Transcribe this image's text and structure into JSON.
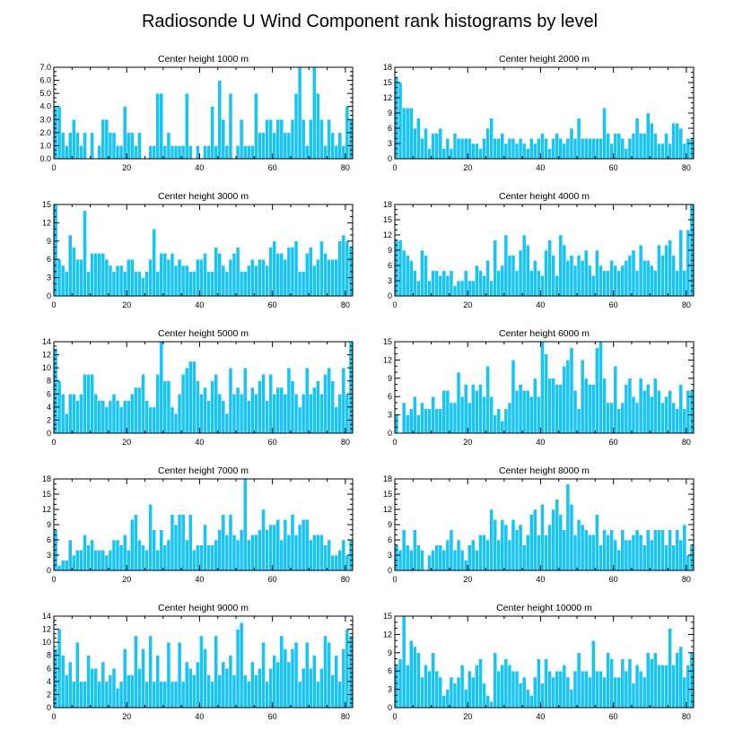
{
  "title": "Radiosonde U Wind Component rank histograms by level",
  "colors": {
    "bar": "#19c4f5",
    "axis": "#000000"
  },
  "chart_data": [
    {
      "type": "bar",
      "title": "Center height 1000 m",
      "xlim": [
        0,
        82
      ],
      "xticks": [
        "0",
        "20",
        "40",
        "60",
        "80"
      ],
      "ylim": [
        0,
        7
      ],
      "yticks": [
        "0.0",
        "1.0",
        "2.0",
        "3.0",
        "4.0",
        "5.0",
        "6.0",
        "7.0"
      ],
      "values": [
        4,
        4,
        2,
        1,
        2,
        3,
        2,
        1,
        2,
        0,
        2,
        0,
        1,
        3,
        3,
        2,
        2,
        1,
        1,
        4,
        2,
        2,
        1,
        2,
        0,
        0,
        1,
        1,
        5,
        5,
        1,
        2,
        1,
        1,
        1,
        1,
        5,
        1,
        0,
        1,
        0,
        1,
        1,
        4,
        1,
        6,
        3,
        1,
        5,
        0,
        1,
        3,
        1,
        1,
        1,
        5,
        2,
        2,
        3,
        3,
        2,
        3,
        3,
        2,
        2,
        3,
        5,
        7,
        3,
        1,
        3,
        7,
        5,
        3,
        1,
        3,
        2,
        1,
        2,
        1,
        4,
        3
      ]
    },
    {
      "type": "bar",
      "title": "Center height 2000 m",
      "xlim": [
        0,
        82
      ],
      "xticks": [
        "0",
        "20",
        "40",
        "60",
        "80"
      ],
      "ylim": [
        0,
        18
      ],
      "yticks": [
        "0",
        "3",
        "6",
        "9",
        "12",
        "15",
        "18"
      ],
      "values": [
        16,
        15,
        10,
        10,
        10,
        6,
        8,
        4,
        6,
        2,
        5,
        5,
        6,
        2,
        4,
        2,
        5,
        4,
        4,
        4,
        4,
        3,
        3,
        2,
        4,
        6,
        8,
        4,
        4,
        5,
        3,
        4,
        4,
        3,
        4,
        3,
        2,
        4,
        3,
        4,
        5,
        4,
        2,
        4,
        5,
        4,
        3,
        4,
        6,
        4,
        8,
        4,
        4,
        4,
        4,
        4,
        4,
        10,
        5,
        3,
        5,
        5,
        4,
        2,
        4,
        5,
        8,
        5,
        5,
        9,
        7,
        5,
        3,
        3,
        5,
        3,
        7,
        7,
        6,
        3,
        4,
        4
      ]
    },
    {
      "type": "bar",
      "title": "Center height 3000 m",
      "xlim": [
        0,
        82
      ],
      "xticks": [
        "0",
        "20",
        "40",
        "60",
        "80"
      ],
      "ylim": [
        0,
        15
      ],
      "yticks": [
        "0",
        "3",
        "6",
        "9",
        "12",
        "15"
      ],
      "values": [
        15,
        6,
        5,
        4,
        10,
        8,
        6,
        6,
        14,
        4,
        7,
        7,
        7,
        7,
        6,
        5,
        4,
        5,
        5,
        4,
        6,
        6,
        4,
        4,
        3,
        4,
        6,
        11,
        4,
        7,
        7,
        6,
        7,
        5,
        6,
        5,
        5,
        4,
        4,
        6,
        6,
        7,
        4,
        4,
        8,
        7,
        5,
        4,
        6,
        7,
        8,
        4,
        4,
        5,
        6,
        5,
        6,
        6,
        5,
        8,
        9,
        7,
        7,
        6,
        8,
        8,
        9,
        4,
        4,
        7,
        8,
        5,
        6,
        9,
        7,
        6,
        6,
        6,
        9,
        10,
        9,
        8
      ]
    },
    {
      "type": "bar",
      "title": "Center height 4000 m",
      "xlim": [
        0,
        82
      ],
      "xticks": [
        "0",
        "20",
        "40",
        "60",
        "80"
      ],
      "ylim": [
        0,
        18
      ],
      "yticks": [
        "0",
        "3",
        "6",
        "9",
        "12",
        "15",
        "18"
      ],
      "values": [
        11,
        11,
        9,
        8,
        7,
        5,
        3,
        9,
        8,
        3,
        5,
        5,
        4,
        5,
        4,
        5,
        2,
        3,
        3,
        5,
        3,
        3,
        6,
        5,
        4,
        7,
        3,
        11,
        5,
        6,
        12,
        8,
        8,
        5,
        9,
        12,
        10,
        5,
        7,
        5,
        4,
        9,
        11,
        8,
        4,
        12,
        10,
        7,
        8,
        6,
        8,
        7,
        9,
        6,
        4,
        9,
        6,
        5,
        5,
        7,
        6,
        5,
        6,
        7,
        8,
        9,
        5,
        10,
        7,
        7,
        6,
        5,
        10,
        8,
        10,
        11,
        8,
        5,
        13,
        5,
        13,
        18
      ]
    },
    {
      "type": "bar",
      "title": "Center height 5000 m",
      "xlim": [
        0,
        82
      ],
      "xticks": [
        "0",
        "20",
        "40",
        "60",
        "80"
      ],
      "ylim": [
        0,
        14
      ],
      "yticks": [
        "0",
        "2",
        "4",
        "6",
        "8",
        "10",
        "12",
        "14"
      ],
      "values": [
        13,
        8,
        6,
        3,
        6,
        6,
        5,
        6,
        9,
        9,
        9,
        6,
        5,
        5,
        4,
        5,
        6,
        5,
        4,
        5,
        5,
        6,
        7,
        7,
        9,
        5,
        4,
        4,
        9,
        14,
        8,
        8,
        4,
        3,
        6,
        9,
        10,
        11,
        11,
        8,
        6,
        7,
        5,
        8,
        9,
        6,
        5,
        3,
        10,
        6,
        7,
        6,
        10,
        5,
        7,
        6,
        8,
        9,
        5,
        9,
        6,
        7,
        7,
        6,
        10,
        8,
        6,
        4,
        6,
        10,
        6,
        7,
        8,
        6,
        9,
        10,
        8,
        4,
        6,
        10,
        6,
        14
      ]
    },
    {
      "type": "bar",
      "title": "Center height 6000 m",
      "xlim": [
        0,
        82
      ],
      "xticks": [
        "0",
        "20",
        "40",
        "60",
        "80"
      ],
      "ylim": [
        0,
        15
      ],
      "yticks": [
        "0",
        "3",
        "6",
        "9",
        "12",
        "15"
      ],
      "values": [
        3,
        0,
        5,
        3,
        4,
        6,
        3,
        5,
        4,
        4,
        6,
        4,
        4,
        7,
        7,
        5,
        5,
        10,
        6,
        8,
        5,
        8,
        7,
        8,
        6,
        11,
        6,
        3,
        4,
        2,
        4,
        5,
        12,
        7,
        8,
        7,
        7,
        6,
        9,
        6,
        15,
        13,
        9,
        9,
        8,
        8,
        11,
        12,
        14,
        7,
        4,
        12,
        9,
        8,
        8,
        14,
        15,
        9,
        5,
        5,
        11,
        4,
        5,
        8,
        9,
        6,
        5,
        9,
        7,
        8,
        6,
        9,
        7,
        5,
        6,
        7,
        5,
        4,
        8,
        4,
        7,
        7
      ]
    },
    {
      "type": "bar",
      "title": "Center height 7000 m",
      "xlim": [
        0,
        82
      ],
      "xticks": [
        "0",
        "20",
        "40",
        "60",
        "80"
      ],
      "ylim": [
        0,
        18
      ],
      "yticks": [
        "0",
        "3",
        "6",
        "9",
        "12",
        "15",
        "18"
      ],
      "values": [
        8,
        1,
        2,
        2,
        6,
        3,
        4,
        4,
        7,
        5,
        6,
        4,
        4,
        4,
        3,
        4,
        6,
        6,
        5,
        7,
        4,
        10,
        11,
        6,
        5,
        4,
        13,
        8,
        4,
        8,
        5,
        6,
        11,
        9,
        11,
        11,
        6,
        11,
        4,
        5,
        5,
        9,
        5,
        5,
        6,
        8,
        11,
        7,
        11,
        7,
        6,
        8,
        18,
        6,
        7,
        7,
        8,
        12,
        8,
        9,
        9,
        10,
        6,
        10,
        7,
        11,
        7,
        9,
        10,
        10,
        6,
        7,
        7,
        7,
        5,
        6,
        3,
        3,
        4,
        6,
        3,
        6
      ]
    },
    {
      "type": "bar",
      "title": "Center height 8000 m",
      "xlim": [
        0,
        82
      ],
      "xticks": [
        "0",
        "20",
        "40",
        "60",
        "80"
      ],
      "ylim": [
        0,
        18
      ],
      "yticks": [
        "0",
        "3",
        "6",
        "9",
        "12",
        "15",
        "18"
      ],
      "values": [
        5,
        4,
        8,
        5,
        4,
        8,
        5,
        4,
        0,
        3,
        4,
        5,
        5,
        4,
        6,
        8,
        4,
        6,
        4,
        2,
        5,
        6,
        4,
        7,
        7,
        6,
        12,
        10,
        6,
        10,
        9,
        6,
        10,
        8,
        9,
        5,
        7,
        11,
        12,
        7,
        13,
        7,
        9,
        12,
        14,
        11,
        8,
        17,
        13,
        7,
        10,
        9,
        8,
        7,
        7,
        11,
        5,
        8,
        7,
        8,
        6,
        4,
        8,
        6,
        6,
        7,
        8,
        7,
        5,
        8,
        6,
        8,
        8,
        8,
        5,
        8,
        5,
        8,
        6,
        9,
        3,
        5
      ]
    },
    {
      "type": "bar",
      "title": "Center height 9000 m",
      "xlim": [
        0,
        82
      ],
      "xticks": [
        "0",
        "20",
        "40",
        "60",
        "80"
      ],
      "ylim": [
        0,
        14
      ],
      "yticks": [
        "0",
        "2",
        "4",
        "6",
        "8",
        "10",
        "12",
        "14"
      ],
      "values": [
        9,
        12,
        8,
        5,
        7,
        4,
        10,
        4,
        4,
        8,
        6,
        6,
        4,
        7,
        4,
        5,
        6,
        3,
        4,
        9,
        5,
        5,
        11,
        6,
        9,
        4,
        11,
        4,
        8,
        4,
        4,
        10,
        4,
        4,
        10,
        4,
        7,
        6,
        5,
        7,
        11,
        9,
        5,
        4,
        11,
        5,
        7,
        6,
        8,
        5,
        12,
        13,
        5,
        4,
        7,
        5,
        6,
        10,
        4,
        6,
        8,
        7,
        11,
        9,
        7,
        9,
        10,
        4,
        6,
        10,
        6,
        8,
        4,
        6,
        11,
        10,
        5,
        8,
        4,
        9,
        12,
        11
      ]
    },
    {
      "type": "bar",
      "title": "Center height 10000 m",
      "xlim": [
        0,
        82
      ],
      "xticks": [
        "0",
        "20",
        "40",
        "60",
        "80"
      ],
      "ylim": [
        0,
        15
      ],
      "yticks": [
        "0",
        "3",
        "6",
        "9",
        "12",
        "15"
      ],
      "values": [
        7,
        8,
        15,
        7,
        11,
        10,
        9,
        5,
        7,
        6,
        9,
        6,
        5,
        2,
        3,
        5,
        4,
        5,
        7,
        3,
        6,
        5,
        7,
        8,
        4,
        2,
        1,
        9,
        6,
        7,
        8,
        7,
        6,
        6,
        4,
        5,
        3,
        2,
        5,
        8,
        4,
        8,
        6,
        5,
        6,
        6,
        7,
        5,
        3,
        6,
        9,
        6,
        6,
        5,
        11,
        6,
        6,
        5,
        9,
        8,
        5,
        5,
        8,
        6,
        8,
        4,
        7,
        6,
        5,
        9,
        8,
        9,
        7,
        7,
        7,
        13,
        7,
        9,
        10,
        5,
        7,
        9
      ]
    }
  ]
}
